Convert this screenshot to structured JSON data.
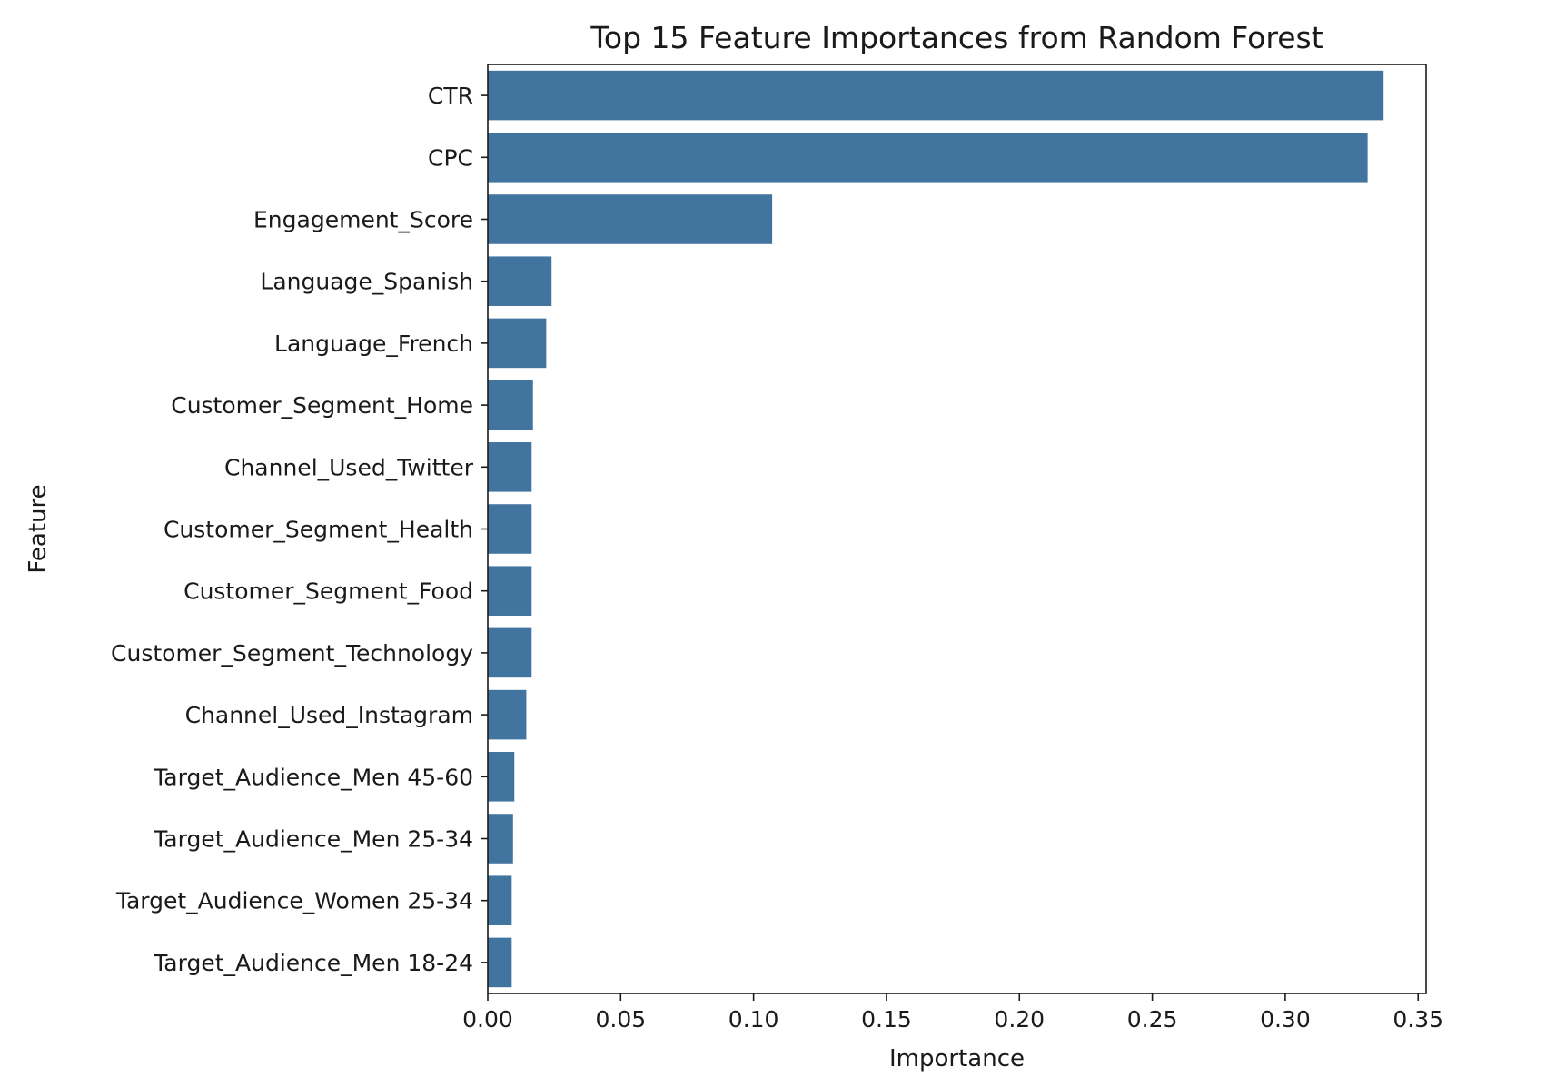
{
  "chart_data": {
    "type": "bar",
    "orientation": "horizontal",
    "title": "Top 15 Feature Importances from Random Forest",
    "xlabel": "Importance",
    "ylabel": "Feature",
    "categories": [
      "CTR",
      "CPC",
      "Engagement_Score",
      "Language_Spanish",
      "Language_French",
      "Customer_Segment_Home",
      "Channel_Used_Twitter",
      "Customer_Segment_Health",
      "Customer_Segment_Food",
      "Customer_Segment_Technology",
      "Channel_Used_Instagram",
      "Target_Audience_Men 45-60",
      "Target_Audience_Men 25-34",
      "Target_Audience_Women 25-34",
      "Target_Audience_Men 18-24"
    ],
    "values": [
      0.337,
      0.331,
      0.107,
      0.024,
      0.022,
      0.017,
      0.0165,
      0.0165,
      0.0165,
      0.0165,
      0.0145,
      0.01,
      0.0095,
      0.009,
      0.009
    ],
    "xlim": [
      0,
      0.353
    ],
    "xticks": [
      "0.00",
      "0.05",
      "0.10",
      "0.15",
      "0.20",
      "0.25",
      "0.30",
      "0.35"
    ],
    "xtick_values": [
      0,
      0.05,
      0.1,
      0.15,
      0.2,
      0.25,
      0.3,
      0.35
    ],
    "grid": false,
    "bar_color": "#4274a0"
  }
}
